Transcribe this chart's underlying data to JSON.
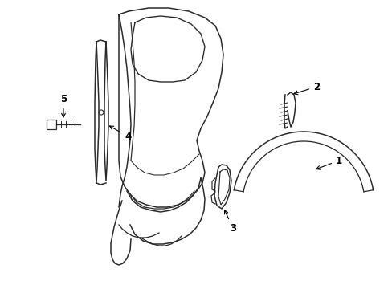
{
  "background_color": "#ffffff",
  "line_color": "#2a2a2a",
  "fig_width": 4.89,
  "fig_height": 3.6,
  "dpi": 100,
  "xlim": [
    0,
    489
  ],
  "ylim": [
    0,
    360
  ]
}
